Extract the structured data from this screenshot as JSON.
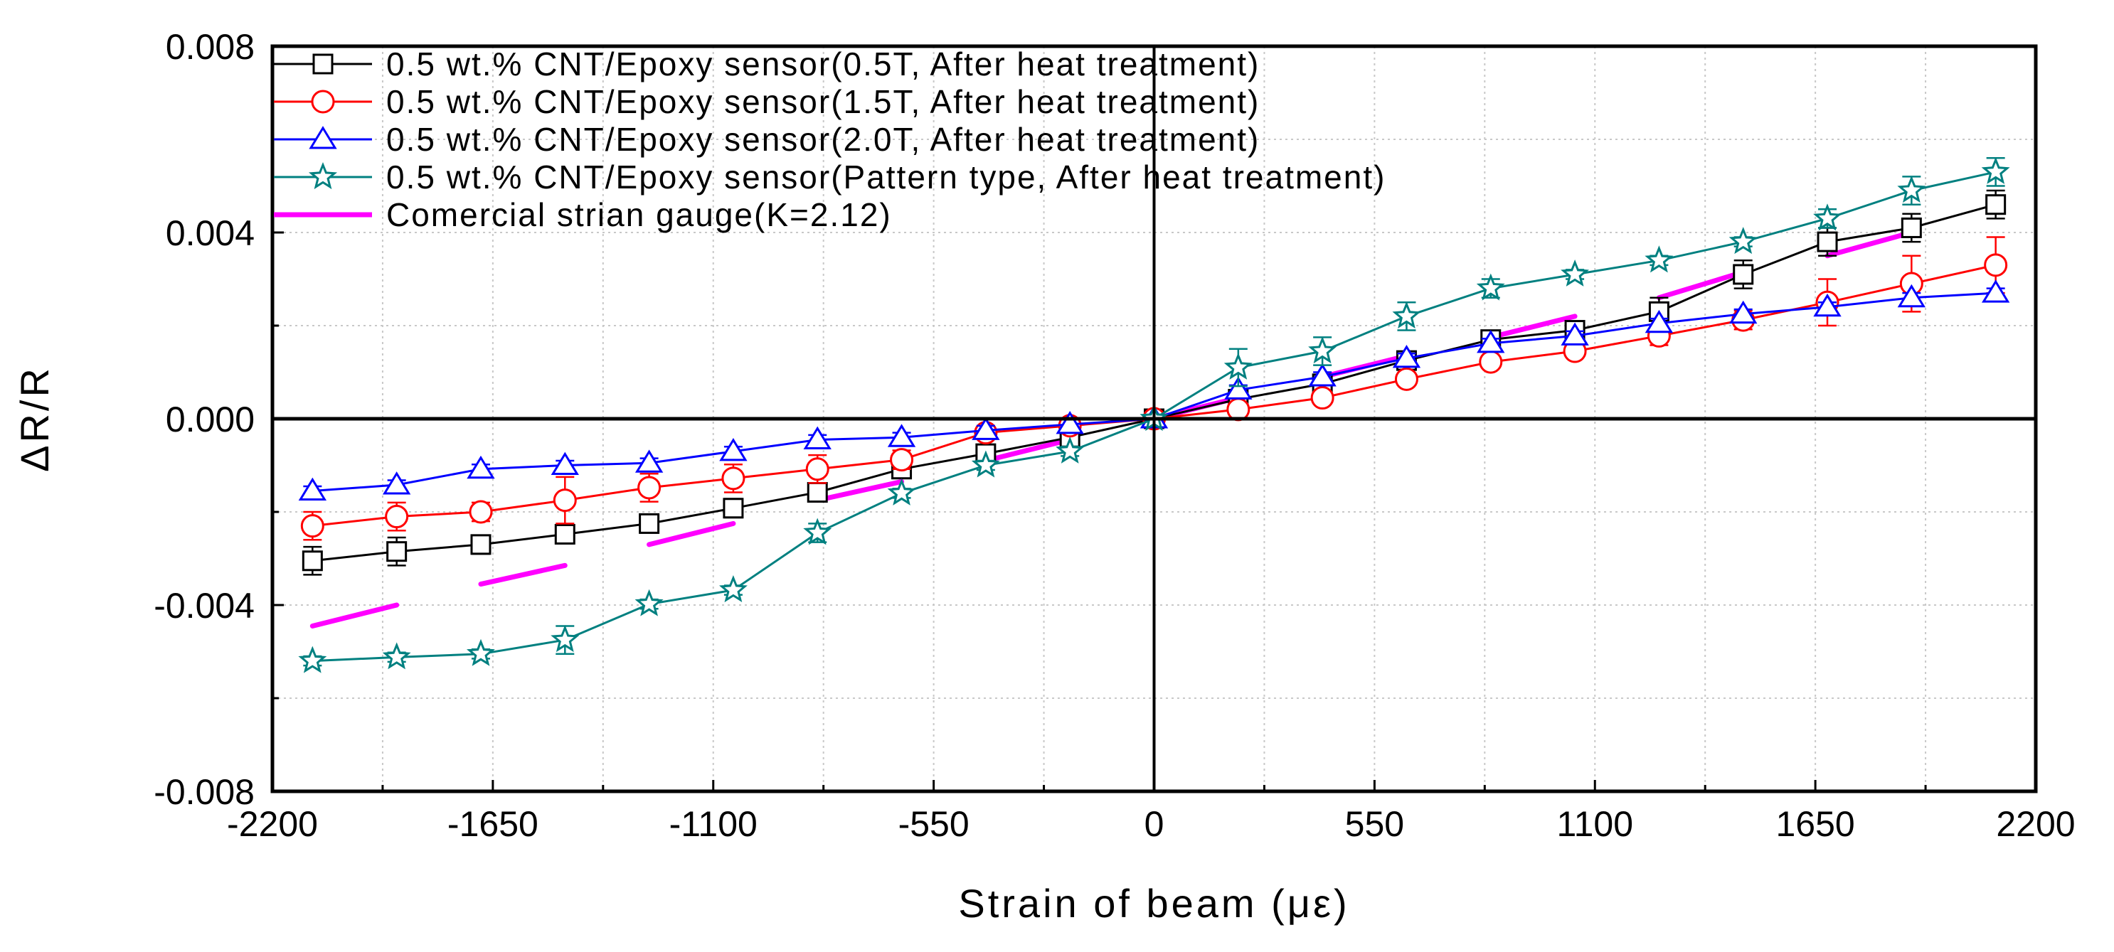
{
  "chart_data": {
    "type": "line",
    "title": "",
    "xlabel": "Strain of beam (με)",
    "ylabel": "ΔR/R",
    "xlim": [
      -2200,
      2200
    ],
    "ylim": [
      -0.008,
      0.008
    ],
    "xticks": [
      -2200,
      -1650,
      -1100,
      -550,
      0,
      550,
      1100,
      1650,
      2200
    ],
    "xtick_labels": [
      "-2200",
      "-1650",
      "-1100",
      "-550",
      "0",
      "550",
      "1100",
      "1650",
      "2200"
    ],
    "yticks": [
      -0.008,
      -0.004,
      0.0,
      0.004,
      0.008
    ],
    "ytick_labels": [
      "-0.008",
      "-0.004",
      "0.000",
      "0.004",
      "0.008"
    ],
    "grid": true,
    "legend_position": "top-left",
    "x": [
      -2100,
      -1890,
      -1680,
      -1470,
      -1260,
      -1050,
      -840,
      -630,
      -420,
      -210,
      0,
      210,
      420,
      630,
      840,
      1050,
      1260,
      1470,
      1680,
      1890,
      2100
    ],
    "series": [
      {
        "name": "0.5 wt.% CNT/Epoxy sensor(0.5T, After heat treatment)",
        "color": "#000000",
        "marker": "square",
        "values": [
          -0.00305,
          -0.00285,
          -0.0027,
          -0.00248,
          -0.00225,
          -0.00192,
          -0.00158,
          -0.00108,
          -0.00075,
          -0.0004,
          0.0,
          0.00042,
          0.00075,
          0.00125,
          0.0017,
          0.0019,
          0.0023,
          0.0031,
          0.0038,
          0.0041,
          0.0046
        ],
        "error": [
          0.0003,
          0.0003,
          0.0002,
          0.0002,
          0.0002,
          0.0002,
          0.0002,
          0.0001,
          0.0001,
          0.0001,
          0.0,
          0.0001,
          0.0001,
          0.0001,
          0.0001,
          0.0001,
          0.0003,
          0.0003,
          0.0003,
          0.0003,
          0.0003
        ]
      },
      {
        "name": "0.5 wt.% CNT/Epoxy sensor(1.5T, After heat treatment)",
        "color": "#ff0000",
        "marker": "circle",
        "values": [
          -0.0023,
          -0.0021,
          -0.002,
          -0.00175,
          -0.00148,
          -0.00128,
          -0.00108,
          -0.00088,
          -0.0003,
          -0.00015,
          0.0,
          0.0002,
          0.00045,
          0.00085,
          0.00122,
          0.00145,
          0.00178,
          0.00212,
          0.0025,
          0.0029,
          0.0033
        ],
        "error": [
          0.0003,
          0.0003,
          0.0002,
          0.0005,
          0.0003,
          0.0003,
          0.0003,
          0.0002,
          0.0001,
          0.0001,
          0.0,
          0.0001,
          0.0001,
          0.0001,
          0.0001,
          0.0001,
          0.0002,
          0.0002,
          0.0005,
          0.0006,
          0.0006
        ]
      },
      {
        "name": "0.5 wt.% CNT/Epoxy sensor(2.0T, After heat treatment)",
        "color": "#0000ff",
        "marker": "triangle",
        "values": [
          -0.00155,
          -0.00142,
          -0.00108,
          -0.001,
          -0.00095,
          -0.0007,
          -0.00045,
          -0.0004,
          -0.00025,
          -0.00012,
          0.0,
          0.00062,
          0.0009,
          0.0013,
          0.00162,
          0.00178,
          0.00205,
          0.00225,
          0.0024,
          0.0026,
          0.0027
        ],
        "error": [
          0.0001,
          0.0001,
          0.0001,
          0.0001,
          0.0001,
          0.0001,
          0.0001,
          0.0001,
          0.0001,
          0.0001,
          0.0,
          0.0001,
          0.0001,
          0.0001,
          0.0001,
          0.0001,
          0.0001,
          0.0001,
          0.0001,
          0.0001,
          0.0001
        ]
      },
      {
        "name": "0.5 wt.% CNT/Epoxy sensor(Pattern type, After heat treatment)",
        "color": "#008080",
        "marker": "star",
        "values": [
          -0.0052,
          -0.00512,
          -0.00505,
          -0.00475,
          -0.00398,
          -0.00368,
          -0.00245,
          -0.0016,
          -0.001,
          -0.0007,
          0.0,
          0.0011,
          0.00145,
          0.0022,
          0.0028,
          0.0031,
          0.0034,
          0.0038,
          0.0043,
          0.0049,
          0.0053
        ],
        "error": [
          0.0001,
          0.0001,
          0.0001,
          0.0003,
          0.0001,
          0.0001,
          0.0002,
          0.0001,
          0.0001,
          0.0001,
          0.0,
          0.0004,
          0.0003,
          0.0003,
          0.0002,
          0.0001,
          0.0001,
          0.0001,
          0.0002,
          0.0003,
          0.0003
        ]
      }
    ],
    "reference": {
      "name": "Comercial strian gauge(K=2.12)",
      "color": "#ff00ff",
      "segments": [
        {
          "x": [
            -2100,
            -1890
          ],
          "y": [
            -0.00445,
            -0.004
          ]
        },
        {
          "x": [
            -1680,
            -1470
          ],
          "y": [
            -0.00355,
            -0.00315
          ]
        },
        {
          "x": [
            -1260,
            -1050
          ],
          "y": [
            -0.0027,
            -0.00225
          ]
        },
        {
          "x": [
            -840,
            -630
          ],
          "y": [
            -0.00175,
            -0.00135
          ]
        },
        {
          "x": [
            -420,
            -210
          ],
          "y": [
            -0.0009,
            -0.00045
          ]
        },
        {
          "x": [
            0,
            210
          ],
          "y": [
            0.0,
            0.00045
          ]
        },
        {
          "x": [
            420,
            630
          ],
          "y": [
            0.0009,
            0.00135
          ]
        },
        {
          "x": [
            840,
            1050
          ],
          "y": [
            0.00175,
            0.0022
          ]
        },
        {
          "x": [
            1260,
            1470
          ],
          "y": [
            0.0026,
            0.00315
          ]
        },
        {
          "x": [
            1680,
            1890
          ],
          "y": [
            0.0035,
            0.004
          ]
        }
      ]
    }
  }
}
